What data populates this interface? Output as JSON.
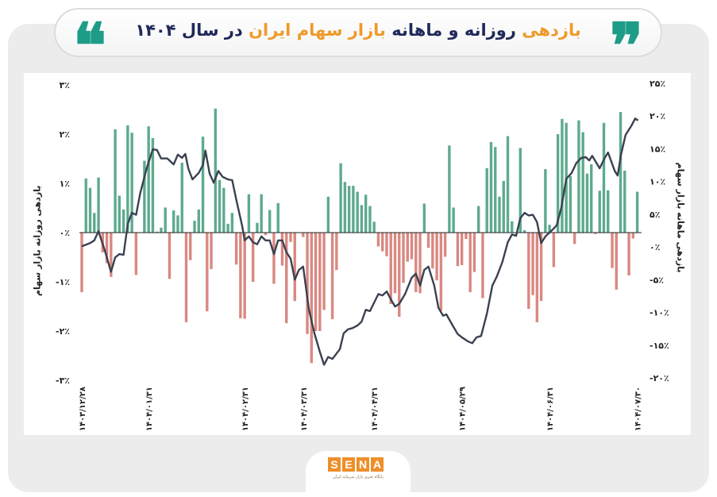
{
  "header": {
    "title_parts": [
      "بازدهی",
      " روزانه و ماهانه ",
      "بازار سهام ایران",
      " در سال ۱۴۰۴"
    ],
    "quote_open": "❝",
    "quote_close": "❞"
  },
  "logo": {
    "letters": [
      "S",
      "E",
      "N",
      "A"
    ],
    "subtitle": "پایگاه خبری بازار سرمایه ایران"
  },
  "colors": {
    "positive": "#5eaa8e",
    "negative": "#d98882",
    "line": "#3a4150",
    "accent": "#ee9a2a",
    "quote": "#1d9c88"
  },
  "chart_data": {
    "type": "bar+line",
    "title": "بازدهی روزانه و ماهانه بازار سهام ایران در سال ۱۴۰۴",
    "ylabel_left": "بازدهی روزانه بازار سهام",
    "ylabel_right": "بازدهی ماهانه بازار سهام",
    "ylim_left": [
      -3,
      3
    ],
    "ylim_right": [
      -20,
      25
    ],
    "left_ticks": [
      {
        "v": 3,
        "label": "۳٪"
      },
      {
        "v": 2,
        "label": "۲٪"
      },
      {
        "v": 1,
        "label": "۱٪"
      },
      {
        "v": 0,
        "label": "۰٪"
      },
      {
        "v": -1,
        "label": "-۱٪"
      },
      {
        "v": -2,
        "label": "-۲٪"
      },
      {
        "v": -3,
        "label": "-۳٪"
      }
    ],
    "right_ticks": [
      {
        "v": 25,
        "label": "۲۵٪"
      },
      {
        "v": 20,
        "label": "۲۰٪"
      },
      {
        "v": 15,
        "label": "۱۵٪"
      },
      {
        "v": 10,
        "label": "۱۰٪"
      },
      {
        "v": 5,
        "label": "۵٪"
      },
      {
        "v": 0,
        "label": "۰٪"
      },
      {
        "v": -5,
        "label": "-۵٪"
      },
      {
        "v": -10,
        "label": "-۱۰٪"
      },
      {
        "v": -15,
        "label": "-۱۵٪"
      },
      {
        "v": -20,
        "label": "-۲۰٪"
      }
    ],
    "x_ticks": [
      {
        "index": 0,
        "label": "۱۴۰۳/۱۲/۲۸"
      },
      {
        "index": 16,
        "label": "۱۴۰۴/۰۱/۳۱"
      },
      {
        "index": 39,
        "label": "۱۴۰۴/۰۲/۳۱"
      },
      {
        "index": 53,
        "label": "۱۴۰۴/۰۳/۳۱"
      },
      {
        "index": 70,
        "label": "۱۴۰۴/۰۴/۳۱"
      },
      {
        "index": 91,
        "label": "۱۴۰۴/۰۵/۲۹"
      },
      {
        "index": 112,
        "label": "۱۴۰۴/۰۶/۳۱"
      },
      {
        "index": 133,
        "label": "۱۴۰۴/۰۷/۳۰"
      }
    ],
    "daily_returns_pct": [
      -1.21,
      1.1,
      0.91,
      0.4,
      1.12,
      -0.4,
      -0.62,
      -0.9,
      2.1,
      0.75,
      0.47,
      2.18,
      2.03,
      -0.86,
      0,
      1.46,
      2.16,
      1.92,
      0.02,
      0.1,
      0.51,
      -0.94,
      0.45,
      0.35,
      1.42,
      -1.82,
      -0.56,
      0.24,
      0.47,
      1.95,
      -1.6,
      -0.74,
      2.52,
      1.07,
      0.91,
      0.18,
      0.4,
      -0.65,
      -1.74,
      -1.75,
      0.78,
      -1.0,
      0.2,
      0.78,
      -0.05,
      0.46,
      -1.04,
      0.6,
      -0.67,
      -1.84,
      -0.19,
      -1.39,
      0,
      -0.09,
      -2.06,
      -2.65,
      -2.0,
      -2.0,
      -1.57,
      0.73,
      -1.76,
      -0.76,
      1.41,
      1.03,
      0.95,
      0.95,
      0.83,
      0.56,
      0.77,
      0.54,
      0.22,
      -0.28,
      -0.38,
      -0.48,
      -1.45,
      -1.23,
      -1.71,
      -1.02,
      -0.59,
      -0.54,
      -1.21,
      -1.23,
      0.59,
      -0.31,
      -0.73,
      -0.97,
      -1.59,
      -0.49,
      1.77,
      0.51,
      -0.68,
      -0.66,
      -0.13,
      -1.21,
      -0.8,
      0.54,
      -1.33,
      1.31,
      1.84,
      1.74,
      0.73,
      1.05,
      1.96,
      0.23,
      0,
      1.72,
      0.05,
      -1.55,
      -1.27,
      -1.82,
      -1.39,
      1.29,
      0.16,
      -0.7,
      2.0,
      2.31,
      2.23,
      1.15,
      -0.23,
      2.28,
      2.04,
      1.2,
      1.39,
      -0.03,
      0.85,
      2.23,
      0.86,
      -0.72,
      -1.16,
      2.45,
      1.26,
      -0.87,
      -0.12,
      0.83
    ],
    "monthly_return_line": {
      "x_index": [
        0,
        2,
        3,
        4,
        5.5,
        7,
        8,
        9,
        10,
        11,
        12,
        13,
        14,
        15.5,
        17,
        18,
        19,
        20.5,
        22,
        23,
        24,
        24.8,
        25.5,
        26.5,
        28,
        29,
        29.6,
        30.6,
        31.6,
        32.7,
        33.7,
        35,
        36,
        37,
        38.4,
        39,
        40,
        41,
        42,
        43,
        44,
        45,
        46,
        47,
        48,
        49,
        50,
        51,
        52,
        53,
        54.4,
        55.7,
        57,
        58,
        59,
        60,
        61.8,
        62.7,
        63.7,
        64.8,
        66,
        67,
        68,
        69,
        70,
        71,
        72,
        73,
        74,
        75,
        76,
        77.4,
        79,
        80,
        81,
        82,
        83,
        84.4,
        85.4,
        86.5,
        87.3,
        88.8,
        90,
        91,
        92.4,
        93.5,
        94.5,
        95.6,
        97,
        98.3,
        99.4,
        100.7,
        102,
        103,
        104,
        105,
        106,
        107,
        108,
        109,
        110,
        111,
        112.5,
        113.7,
        114.8,
        116,
        117.3,
        118.4,
        119.6,
        120.7,
        121.5,
        122.2,
        124,
        125.3,
        126,
        127.6,
        128.3,
        129.1,
        130.2,
        131.6,
        132.5,
        133.2
      ],
      "values_pct": [
        0.1,
        0.6,
        1.0,
        2.4,
        -0.5,
        -3.8,
        -1.6,
        -1.1,
        -1.2,
        3.5,
        5.2,
        4.9,
        8.2,
        11.9,
        14.9,
        14.8,
        13.5,
        13.5,
        12.6,
        14.1,
        13.6,
        14.2,
        12.0,
        10.3,
        11.3,
        12.5,
        14.7,
        11.2,
        9.8,
        11.6,
        10.7,
        10.3,
        10.2,
        7.2,
        3.2,
        1.0,
        1.6,
        0.7,
        0.4,
        1.6,
        1.0,
        1.0,
        -1.1,
        1.0,
        1.0,
        -0.8,
        -1.8,
        -5.0,
        -3.5,
        -3.0,
        -9.6,
        -13.2,
        -16.0,
        -18.0,
        -16.8,
        -17.1,
        -15.6,
        -13.2,
        -12.6,
        -12.4,
        -12.0,
        -11.4,
        -9.6,
        -9.8,
        -8.5,
        -7.2,
        -7.4,
        -6.8,
        -8.0,
        -9.1,
        -8.7,
        -7.2,
        -4.7,
        -4.1,
        -5.9,
        -3.5,
        -3.0,
        -5.9,
        -9.3,
        -10.5,
        -10.3,
        -12.0,
        -13.3,
        -13.8,
        -14.4,
        -14.7,
        -13.8,
        -13.6,
        -10.2,
        -5.9,
        -4.5,
        -2.3,
        0.7,
        1.9,
        1.7,
        4.4,
        5.2,
        4.8,
        4.9,
        3.8,
        0.6,
        1.6,
        2.5,
        3.3,
        5.9,
        10.4,
        11.3,
        12.8,
        13.6,
        13.7,
        13.2,
        13.9,
        12.0,
        13.7,
        14.4,
        11.6,
        10.9,
        14.1,
        17.1,
        18.5,
        19.6,
        19.3
      ]
    },
    "grid": false
  }
}
